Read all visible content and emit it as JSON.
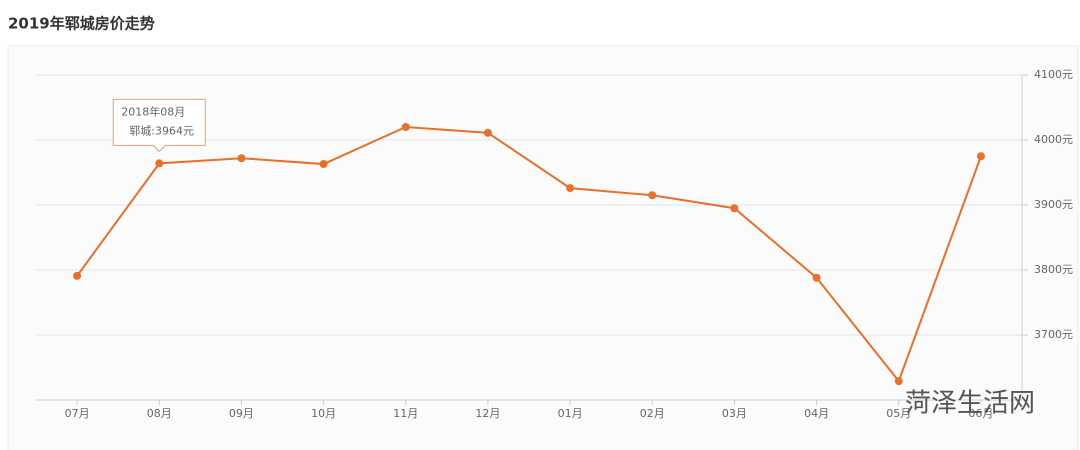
{
  "chart_data": {
    "type": "line",
    "title": "2019年郓城房价走势",
    "categories": [
      "07月",
      "08月",
      "09月",
      "10月",
      "11月",
      "12月",
      "01月",
      "02月",
      "03月",
      "04月",
      "05月",
      "06月"
    ],
    "series": [
      {
        "name": "郓城",
        "color": "#e8702a",
        "values": [
          3791,
          3964,
          3972,
          3963,
          4020,
          4011,
          3926,
          3915,
          3895,
          3788,
          3629,
          3975
        ]
      }
    ],
    "ylim": [
      3600,
      4100
    ],
    "yticks": [
      {
        "value": 3700,
        "label": "3700元"
      },
      {
        "value": 3800,
        "label": "3800元"
      },
      {
        "value": 3900,
        "label": "3900元"
      },
      {
        "value": 4000,
        "label": "4000元"
      },
      {
        "value": 4100,
        "label": "4100元"
      }
    ],
    "grid": true,
    "tooltip": {
      "title": "2018年08月",
      "text": "郓城:3964元"
    },
    "watermark": "菏泽生活网"
  }
}
